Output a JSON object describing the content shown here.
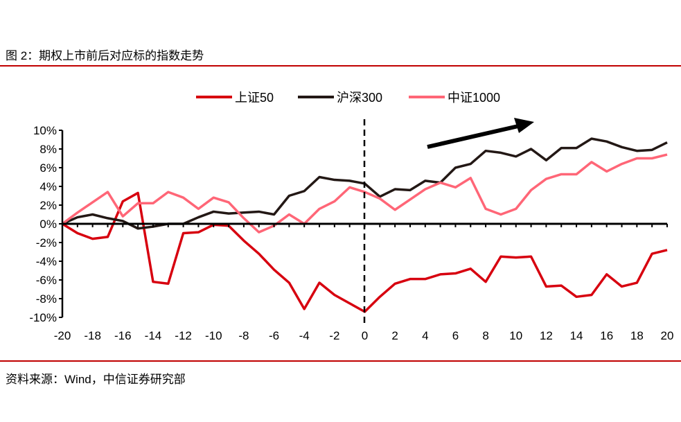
{
  "title": "图 2：期权上市前后对应标的指数走势",
  "source": "资料来源：Wind，中信证券研究部",
  "chart_data": {
    "type": "line",
    "title": "期权上市前后对应标的指数走势",
    "xlabel": "",
    "ylabel": "",
    "xlim": [
      -20,
      20
    ],
    "ylim": [
      -10,
      10
    ],
    "x": [
      -20,
      -19,
      -18,
      -17,
      -16,
      -15,
      -14,
      -13,
      -12,
      -11,
      -10,
      -9,
      -8,
      -7,
      -6,
      -5,
      -4,
      -3,
      -2,
      -1,
      0,
      1,
      2,
      3,
      4,
      5,
      6,
      7,
      8,
      9,
      10,
      11,
      12,
      13,
      14,
      15,
      16,
      17,
      18,
      19,
      20
    ],
    "xticks": [
      "-20",
      "-18",
      "-16",
      "-14",
      "-12",
      "-10",
      "-8",
      "-6",
      "-4",
      "-2",
      "0",
      "2",
      "4",
      "6",
      "8",
      "10",
      "12",
      "14",
      "16",
      "18",
      "20"
    ],
    "xtick_values": [
      -20,
      -18,
      -16,
      -14,
      -12,
      -10,
      -8,
      -6,
      -4,
      -2,
      0,
      2,
      4,
      6,
      8,
      10,
      12,
      14,
      16,
      18,
      20
    ],
    "yticks": [
      "10%",
      "8%",
      "6%",
      "4%",
      "2%",
      "0%",
      "-2%",
      "-4%",
      "-6%",
      "-8%",
      "-10%"
    ],
    "ytick_values": [
      10,
      8,
      6,
      4,
      2,
      0,
      -2,
      -4,
      -6,
      -8,
      -10
    ],
    "legend_position": "top",
    "annotations": [
      "vertical dashed line at x=0",
      "upward trend arrow"
    ],
    "series": [
      {
        "name": "上证50",
        "color": "#d7000f",
        "values": [
          0,
          -1.0,
          -1.6,
          -1.4,
          2.4,
          3.3,
          -6.2,
          -6.4,
          -1.0,
          -0.9,
          -0.1,
          -0.2,
          -1.8,
          -3.2,
          -4.9,
          -6.3,
          -9.1,
          -6.3,
          -7.6,
          -8.5,
          -9.4,
          -7.8,
          -6.4,
          -5.9,
          -5.9,
          -5.4,
          -5.3,
          -4.8,
          -6.2,
          -3.5,
          -3.6,
          -3.5,
          -6.7,
          -6.6,
          -7.8,
          -7.6,
          -5.4,
          -6.7,
          -6.3,
          -3.2,
          -2.8
        ]
      },
      {
        "name": "沪深300",
        "color": "#231815",
        "values": [
          0,
          0.7,
          1.0,
          0.6,
          0.3,
          -0.5,
          -0.3,
          0,
          0,
          0.7,
          1.3,
          1.1,
          1.2,
          1.3,
          1.0,
          3.0,
          3.5,
          5.0,
          4.7,
          4.6,
          4.3,
          2.9,
          3.7,
          3.6,
          4.6,
          4.4,
          6.0,
          6.4,
          7.8,
          7.6,
          7.2,
          8.0,
          6.8,
          8.1,
          8.1,
          9.1,
          8.8,
          8.2,
          7.8,
          7.9,
          8.7
        ]
      },
      {
        "name": "中证1000",
        "color": "#ff6677",
        "values": [
          0,
          1.2,
          2.3,
          3.4,
          0.8,
          2.2,
          2.2,
          3.4,
          2.8,
          1.6,
          2.8,
          2.3,
          0.6,
          -0.9,
          -0.2,
          1.0,
          0,
          1.6,
          2.4,
          3.9,
          3.4,
          2.7,
          1.5,
          2.6,
          3.7,
          4.4,
          3.9,
          4.9,
          1.6,
          1.0,
          1.6,
          3.6,
          4.8,
          5.3,
          5.3,
          6.6,
          5.6,
          6.4,
          7.0,
          7.0,
          7.4
        ]
      }
    ]
  }
}
